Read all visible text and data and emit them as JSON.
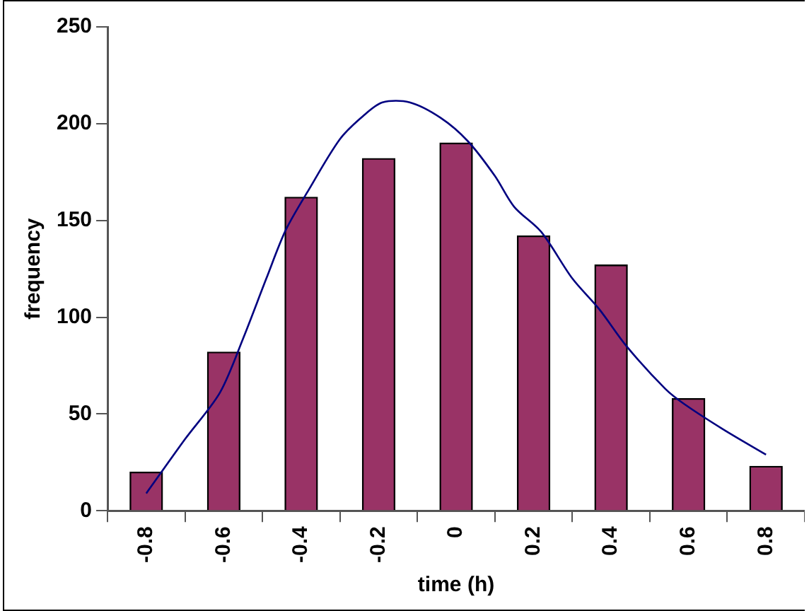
{
  "chart_data": {
    "type": "bar",
    "xlabel": "time (h)",
    "ylabel": "frequency",
    "x": [
      -0.8,
      -0.6,
      -0.4,
      -0.2,
      0,
      0.2,
      0.4,
      0.6,
      0.8
    ],
    "series": [
      {
        "color": "#993366",
        "values": [
          20,
          82,
          162,
          182,
          190,
          142,
          127,
          58,
          23
        ]
      },
      {
        "type": "line",
        "color": "#000080",
        "x": [
          -0.8,
          -0.7,
          -0.61,
          -0.55,
          -0.49,
          -0.44,
          -0.38,
          -0.3,
          -0.24,
          -0.19,
          -0.12,
          -0.04,
          0.03,
          0.1,
          0.15,
          0.22,
          0.3,
          0.37,
          0.44,
          0.54,
          0.59,
          0.69,
          0.8
        ],
        "values": [
          9,
          37,
          61,
          89,
          120,
          145,
          166,
          192,
          204,
          211,
          211,
          203,
          191,
          173,
          157,
          144,
          120,
          104,
          85,
          63,
          55,
          42,
          29
        ]
      }
    ],
    "xlim": [
      -0.9,
      0.9
    ],
    "xticks": [
      -0.8,
      -0.6,
      -0.4,
      -0.2,
      0,
      0.2,
      0.4,
      0.6,
      0.8
    ],
    "ylim": [
      0,
      250
    ],
    "yticks": [
      0,
      50,
      100,
      150,
      200,
      250
    ],
    "grid": false,
    "legend": false,
    "marker": "none",
    "line_style": "solid"
  }
}
